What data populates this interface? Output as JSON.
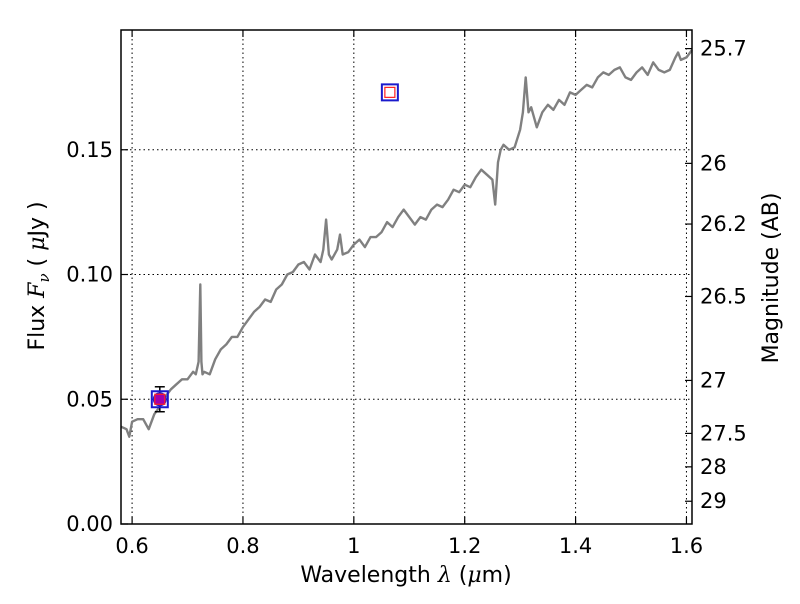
{
  "chart_data": {
    "type": "line",
    "xlabel": {
      "prefix": "Wavelength  ",
      "symbol": "λ",
      "unit_open": " (",
      "unit_mu": "μ",
      "unit_rest": "m)"
    },
    "ylabel": {
      "prefix": "Flux  ",
      "symbol": "F",
      "subscript": "ν",
      "unit_open": "  ( ",
      "unit_mu": "μ",
      "unit_rest": "Jy )"
    },
    "y2label": "Magnitude (AB)",
    "xlim": [
      0.58,
      1.61
    ],
    "ylim": [
      0.0,
      0.198
    ],
    "grid": true,
    "x_ticks": [
      0.6,
      0.8,
      1.0,
      1.2,
      1.4,
      1.6
    ],
    "x_tick_labels": [
      "0.6",
      "0.8",
      "1",
      "1.2",
      "1.4",
      "1.6"
    ],
    "y_ticks": [
      0.0,
      0.05,
      0.1,
      0.15
    ],
    "y_tick_labels": [
      "0.00",
      "0.05",
      "0.10",
      "0.15"
    ],
    "mag_ticks": [
      25.7,
      26,
      26.2,
      26.5,
      27,
      27.5,
      28,
      29
    ],
    "mag_tick_labels": [
      "25.7",
      "26",
      "26.2",
      "26.5",
      "27",
      "27.5",
      "28",
      "29"
    ],
    "series": [
      {
        "kind": "spectrum",
        "color": "#808080",
        "x": [
          0.58,
          0.59,
          0.595,
          0.6,
          0.61,
          0.62,
          0.63,
          0.64,
          0.65,
          0.66,
          0.67,
          0.68,
          0.69,
          0.7,
          0.71,
          0.715,
          0.72,
          0.723,
          0.725,
          0.727,
          0.73,
          0.74,
          0.75,
          0.76,
          0.77,
          0.78,
          0.79,
          0.8,
          0.81,
          0.82,
          0.83,
          0.84,
          0.85,
          0.86,
          0.87,
          0.88,
          0.89,
          0.9,
          0.91,
          0.92,
          0.93,
          0.94,
          0.945,
          0.95,
          0.955,
          0.96,
          0.97,
          0.975,
          0.98,
          0.99,
          1.0,
          1.01,
          1.02,
          1.03,
          1.04,
          1.05,
          1.06,
          1.07,
          1.08,
          1.09,
          1.1,
          1.11,
          1.12,
          1.13,
          1.14,
          1.15,
          1.16,
          1.17,
          1.18,
          1.19,
          1.2,
          1.21,
          1.22,
          1.23,
          1.24,
          1.25,
          1.255,
          1.26,
          1.265,
          1.27,
          1.28,
          1.29,
          1.3,
          1.305,
          1.31,
          1.315,
          1.32,
          1.33,
          1.34,
          1.35,
          1.36,
          1.37,
          1.38,
          1.39,
          1.4,
          1.41,
          1.42,
          1.43,
          1.44,
          1.45,
          1.46,
          1.47,
          1.48,
          1.49,
          1.5,
          1.51,
          1.52,
          1.53,
          1.54,
          1.55,
          1.56,
          1.57,
          1.58,
          1.585,
          1.59,
          1.6,
          1.61
        ],
        "y": [
          0.039,
          0.038,
          0.035,
          0.041,
          0.042,
          0.042,
          0.038,
          0.044,
          0.047,
          0.051,
          0.054,
          0.056,
          0.058,
          0.058,
          0.061,
          0.06,
          0.065,
          0.096,
          0.065,
          0.06,
          0.061,
          0.06,
          0.066,
          0.07,
          0.072,
          0.075,
          0.075,
          0.079,
          0.082,
          0.085,
          0.087,
          0.09,
          0.089,
          0.094,
          0.096,
          0.1,
          0.101,
          0.104,
          0.105,
          0.102,
          0.108,
          0.105,
          0.11,
          0.122,
          0.108,
          0.106,
          0.11,
          0.116,
          0.108,
          0.109,
          0.112,
          0.114,
          0.111,
          0.115,
          0.115,
          0.117,
          0.121,
          0.119,
          0.123,
          0.126,
          0.123,
          0.12,
          0.123,
          0.122,
          0.126,
          0.128,
          0.127,
          0.13,
          0.134,
          0.133,
          0.136,
          0.135,
          0.139,
          0.142,
          0.14,
          0.138,
          0.128,
          0.145,
          0.15,
          0.152,
          0.15,
          0.151,
          0.158,
          0.165,
          0.179,
          0.165,
          0.167,
          0.159,
          0.165,
          0.168,
          0.166,
          0.17,
          0.168,
          0.173,
          0.172,
          0.174,
          0.176,
          0.175,
          0.179,
          0.181,
          0.18,
          0.182,
          0.183,
          0.179,
          0.178,
          0.181,
          0.183,
          0.18,
          0.185,
          0.182,
          0.181,
          0.182,
          0.187,
          0.189,
          0.186,
          0.187,
          0.19
        ]
      },
      {
        "kind": "photometry-circle",
        "fill": "#a000b0",
        "edge": "#1a1acc",
        "points": [
          {
            "x": 0.65,
            "y": 0.05,
            "yerr": 0.005
          }
        ]
      },
      {
        "kind": "model-square",
        "edge": "#1a1acc",
        "inner": "#ff2020",
        "points": [
          {
            "x": 0.65,
            "y": 0.05
          },
          {
            "x": 1.065,
            "y": 0.173
          }
        ]
      }
    ]
  }
}
